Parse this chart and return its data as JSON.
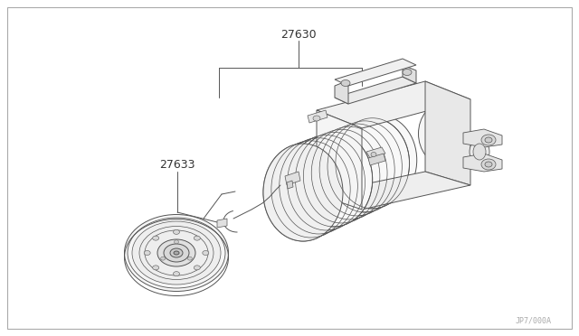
{
  "background_color": "#ffffff",
  "line_color": "#555555",
  "light_line": "#888888",
  "label_27630": "27630",
  "label_27633": "27633",
  "watermark": "JP7/000A",
  "fig_width": 6.4,
  "fig_height": 3.72,
  "dpi": 100,
  "border_color": "#aaaaaa"
}
